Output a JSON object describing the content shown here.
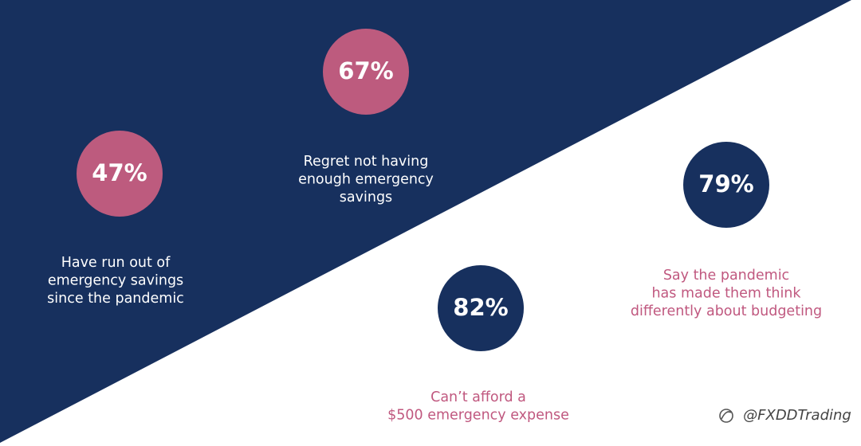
{
  "stats": [
    {
      "value": "47%",
      "label_lines": [
        "Have run out of",
        "emergency savings",
        "since the pandemic"
      ]
    },
    {
      "value": "67%",
      "label_lines": [
        "Regret not having",
        "enough emergency",
        "savings"
      ]
    },
    {
      "value": "79%",
      "label_lines": [
        "Say the pandemic",
        "has made them think",
        "differently about budgeting"
      ]
    },
    {
      "value": "82%",
      "label_lines": [
        "Can’t afford a",
        "$500 emergency expense"
      ]
    }
  ],
  "watermark": "@FXDDTrading"
}
